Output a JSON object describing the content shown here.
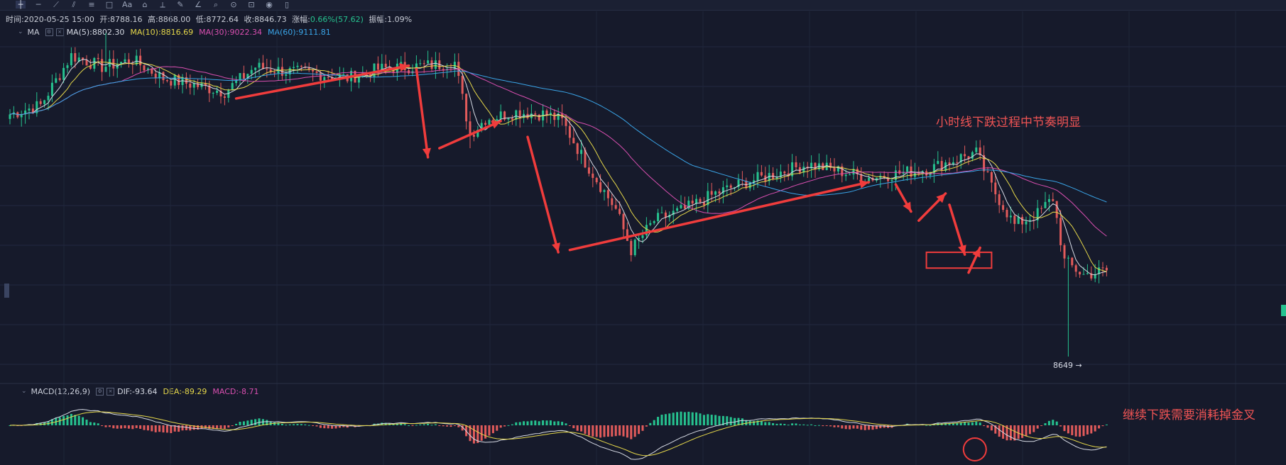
{
  "toolbar": {
    "icons": [
      "crosshair-icon",
      "horizontal-line-icon",
      "trend-line-icon",
      "channel-icon",
      "fib-icon",
      "shape-icon",
      "text-icon",
      "pattern-icon",
      "ruler-icon",
      "brush-icon",
      "measure-icon",
      "zoom-icon",
      "magnet-icon",
      "lock-icon",
      "eye-icon",
      "trash-icon"
    ],
    "text_tool": "Aa"
  },
  "info": {
    "time": "时间:2020-05-25 15:00",
    "open": "开:8788.16",
    "high": "高:8868.00",
    "low": "低:8772.64",
    "close": "收:8846.73",
    "change_label": "涨幅:",
    "change": "0.66%(57.62)",
    "amplitude": "振幅:1.09%"
  },
  "ma_legend": {
    "name": "MA",
    "ma5": "MA(5):8802.30",
    "ma10": "MA(10):8816.69",
    "ma30": "MA(30):9022.34",
    "ma60": "MA(60):9111.81"
  },
  "macd_legend": {
    "name": "MACD(12,26,9)",
    "dif": "DIF:-93.64",
    "dea": "DEA:-89.29",
    "macd": "MACD:-8.71"
  },
  "annotations": {
    "text1": "小时线下跌过程中节奏明显",
    "text2": "继续下跌需要消耗掉金叉",
    "min_price": "8649 →"
  },
  "colors": {
    "background": "#161a2b",
    "up": "#26c28f",
    "down": "#e25b5b",
    "ma5": "#d6dae4",
    "ma10": "#e6d84a",
    "ma30": "#d94fb0",
    "ma60": "#3aa5e8",
    "annotation": "#f03c3c"
  },
  "chart_data": {
    "type": "candlestick",
    "timeframe": "1H",
    "price_waypoints": [
      {
        "i": 0,
        "p": 9720
      },
      {
        "i": 8,
        "p": 9760
      },
      {
        "i": 16,
        "p": 9980
      },
      {
        "i": 24,
        "p": 9930
      },
      {
        "i": 32,
        "p": 9960
      },
      {
        "i": 40,
        "p": 9880
      },
      {
        "i": 48,
        "p": 9850
      },
      {
        "i": 56,
        "p": 9820
      },
      {
        "i": 64,
        "p": 9930
      },
      {
        "i": 72,
        "p": 9910
      },
      {
        "i": 80,
        "p": 9900
      },
      {
        "i": 88,
        "p": 9880
      },
      {
        "i": 96,
        "p": 9920
      },
      {
        "i": 104,
        "p": 9930
      },
      {
        "i": 112,
        "p": 9940
      },
      {
        "i": 116,
        "p": 9950
      },
      {
        "i": 120,
        "p": 9630
      },
      {
        "i": 124,
        "p": 9700
      },
      {
        "i": 132,
        "p": 9730
      },
      {
        "i": 140,
        "p": 9720
      },
      {
        "i": 144,
        "p": 9690
      },
      {
        "i": 150,
        "p": 9510
      },
      {
        "i": 158,
        "p": 9300
      },
      {
        "i": 162,
        "p": 9120
      },
      {
        "i": 168,
        "p": 9250
      },
      {
        "i": 176,
        "p": 9300
      },
      {
        "i": 184,
        "p": 9370
      },
      {
        "i": 192,
        "p": 9420
      },
      {
        "i": 200,
        "p": 9460
      },
      {
        "i": 208,
        "p": 9500
      },
      {
        "i": 216,
        "p": 9470
      },
      {
        "i": 224,
        "p": 9440
      },
      {
        "i": 232,
        "p": 9460
      },
      {
        "i": 240,
        "p": 9480
      },
      {
        "i": 248,
        "p": 9530
      },
      {
        "i": 252,
        "p": 9550
      },
      {
        "i": 256,
        "p": 9400
      },
      {
        "i": 262,
        "p": 9230
      },
      {
        "i": 268,
        "p": 9280
      },
      {
        "i": 272,
        "p": 9350
      },
      {
        "i": 275,
        "p": 9070
      },
      {
        "i": 280,
        "p": 9010
      },
      {
        "i": 286,
        "p": 9030
      }
    ],
    "min_price": 8649,
    "ma_periods": [
      5,
      10,
      30,
      60
    ],
    "macd_params": [
      12,
      26,
      9
    ],
    "macd_last": {
      "dif": -93.64,
      "dea": -89.29,
      "macd": -8.71
    },
    "last_bar": {
      "time": "2020-05-25 15:00",
      "open": 8788.16,
      "high": 8868.0,
      "low": 8772.64,
      "close": 8846.73
    }
  }
}
